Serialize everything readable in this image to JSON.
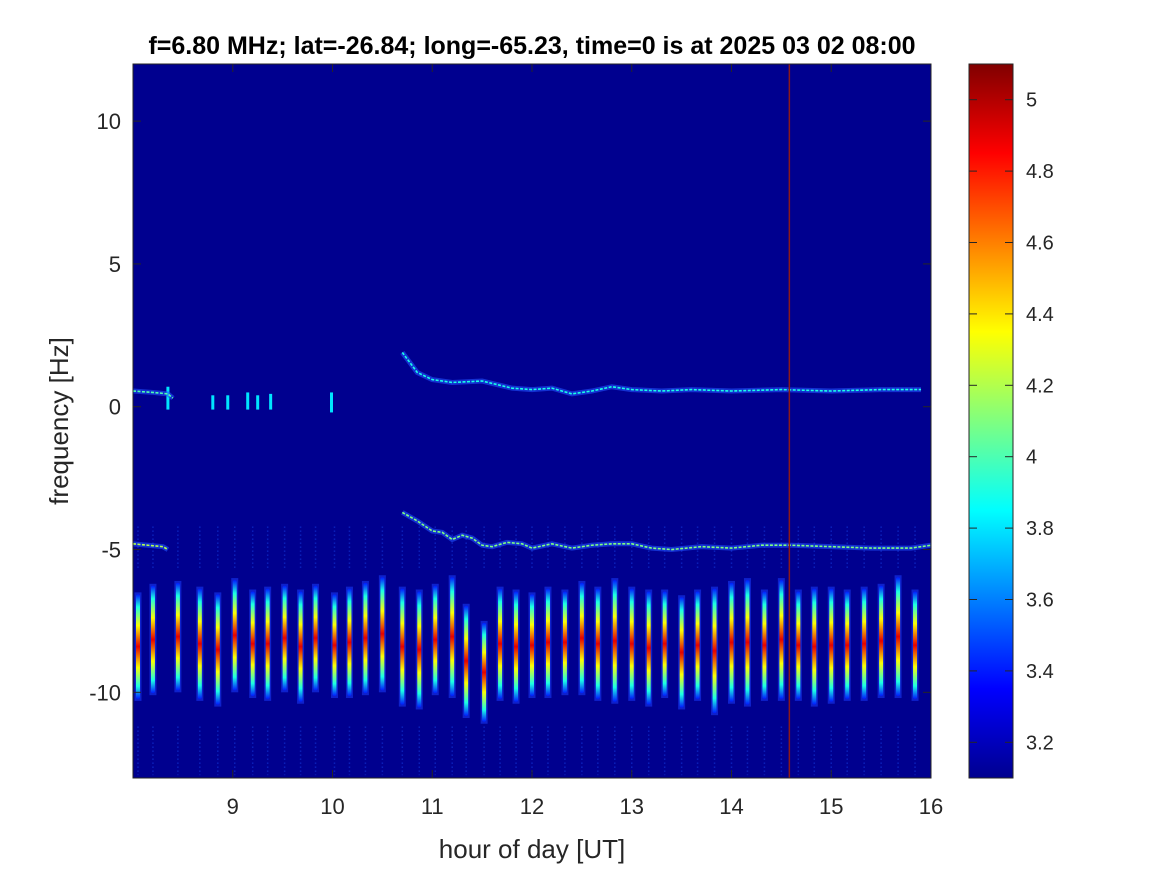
{
  "chart_data": {
    "type": "heatmap",
    "title": "f=6.80 MHz;  lat=-26.84; long=-65.23, time=0 is at 2025 03 02 08:00",
    "xlabel": "hour of day [UT]",
    "ylabel": "frequency [Hz]",
    "xlim": [
      8.0,
      16.0
    ],
    "ylim": [
      -13.0,
      12.0
    ],
    "xticks": [
      9,
      10,
      11,
      12,
      13,
      14,
      15,
      16
    ],
    "xtick_labels": [
      "9",
      "10",
      "11",
      "12",
      "13",
      "14",
      "15",
      "16"
    ],
    "yticks": [
      -10,
      -5,
      0,
      5,
      10
    ],
    "ytick_labels": [
      "-10",
      "-5",
      "0",
      "5",
      "10"
    ],
    "colormap": "jet",
    "clim": [
      3.1,
      5.1
    ],
    "colorbar_ticks": [
      3.2,
      3.4,
      3.6,
      3.8,
      4.0,
      4.2,
      4.4,
      4.6,
      4.8,
      5.0
    ],
    "colorbar_tick_labels": [
      "3.2",
      "3.4",
      "3.6",
      "3.8",
      "4",
      "4.2",
      "4.4",
      "4.6",
      "4.8",
      "5"
    ],
    "background_value": 3.12,
    "vertical_marker": {
      "x": 14.58,
      "color": "#8b1a1a"
    },
    "traces": [
      {
        "name": "upper doppler trace",
        "x": [
          8.0,
          8.2,
          8.35,
          8.4
        ],
        "y": [
          0.55,
          0.5,
          0.45,
          0.3
        ],
        "value": 4.0
      },
      {
        "name": "upper doppler trace 2",
        "x": [
          10.7,
          10.85,
          11.0,
          11.2,
          11.5,
          11.8,
          12.0,
          12.2,
          12.4,
          12.6,
          12.8,
          13.0,
          13.3,
          13.6,
          14.0,
          14.5,
          15.0,
          15.5,
          15.9
        ],
        "y": [
          1.9,
          1.2,
          0.95,
          0.85,
          0.9,
          0.65,
          0.6,
          0.65,
          0.45,
          0.55,
          0.7,
          0.6,
          0.55,
          0.6,
          0.55,
          0.6,
          0.55,
          0.6,
          0.6
        ],
        "value": 3.9
      },
      {
        "name": "lower doppler trace",
        "x": [
          8.0,
          8.15,
          8.3,
          8.35
        ],
        "y": [
          -4.8,
          -4.85,
          -4.9,
          -5.0
        ],
        "value": 4.2
      },
      {
        "name": "lower doppler trace 2",
        "x": [
          10.7,
          10.85,
          11.0,
          11.1,
          11.2,
          11.3,
          11.4,
          11.5,
          11.6,
          11.75,
          11.9,
          12.0,
          12.2,
          12.4,
          12.6,
          12.8,
          13.0,
          13.2,
          13.4,
          13.7,
          14.0,
          14.3,
          14.6,
          15.0,
          15.4,
          15.8,
          16.0
        ],
        "y": [
          -3.7,
          -4.0,
          -4.35,
          -4.4,
          -4.65,
          -4.5,
          -4.6,
          -4.85,
          -4.9,
          -4.75,
          -4.8,
          -4.95,
          -4.8,
          -4.95,
          -4.85,
          -4.8,
          -4.8,
          -4.95,
          -5.0,
          -4.9,
          -4.95,
          -4.85,
          -4.85,
          -4.9,
          -4.95,
          -4.95,
          -4.85
        ],
        "value": 4.1
      }
    ],
    "blips": [
      {
        "x": 8.35,
        "y0": -0.1,
        "y1": 0.7
      },
      {
        "x": 8.8,
        "y0": -0.1,
        "y1": 0.4
      },
      {
        "x": 8.95,
        "y0": -0.1,
        "y1": 0.4
      },
      {
        "x": 9.15,
        "y0": -0.1,
        "y1": 0.5
      },
      {
        "x": 9.25,
        "y0": -0.1,
        "y1": 0.4
      },
      {
        "x": 9.38,
        "y0": -0.1,
        "y1": 0.45
      },
      {
        "x": 9.99,
        "y0": -0.2,
        "y1": 0.5
      }
    ],
    "stripes": {
      "x": [
        8.05,
        8.2,
        8.45,
        8.67,
        8.85,
        9.02,
        9.2,
        9.35,
        9.52,
        9.68,
        9.83,
        10.02,
        10.17,
        10.33,
        10.5,
        10.7,
        10.87,
        11.03,
        11.2,
        11.34,
        11.52,
        11.68,
        11.84,
        12.0,
        12.16,
        12.33,
        12.5,
        12.66,
        12.83,
        13.0,
        13.17,
        13.33,
        13.5,
        13.66,
        13.83,
        14.0,
        14.16,
        14.33,
        14.5,
        14.67,
        14.83,
        15.0,
        15.16,
        15.33,
        15.5,
        15.67,
        15.84
      ],
      "y_top": [
        -6.5,
        -6.2,
        -6.1,
        -6.3,
        -6.5,
        -6.0,
        -6.4,
        -6.3,
        -6.2,
        -6.4,
        -6.2,
        -6.5,
        -6.3,
        -6.1,
        -5.9,
        -6.3,
        -6.4,
        -6.2,
        -5.9,
        -6.9,
        -7.5,
        -6.3,
        -6.4,
        -6.5,
        -6.3,
        -6.4,
        -6.1,
        -6.3,
        -6.0,
        -6.3,
        -6.4,
        -6.4,
        -6.6,
        -6.4,
        -6.3,
        -6.1,
        -6.0,
        -6.4,
        -6.0,
        -6.4,
        -6.3,
        -6.3,
        -6.4,
        -6.3,
        -6.2,
        -5.9,
        -6.4
      ],
      "y_bottom": [
        -10.3,
        -10.1,
        -10.0,
        -10.3,
        -10.5,
        -10.0,
        -10.2,
        -10.3,
        -10.0,
        -10.4,
        -10.0,
        -10.2,
        -10.2,
        -10.1,
        -10.0,
        -10.5,
        -10.6,
        -10.1,
        -10.2,
        -10.9,
        -11.1,
        -10.3,
        -10.4,
        -10.2,
        -10.2,
        -10.1,
        -10.1,
        -10.3,
        -10.4,
        -10.3,
        -10.5,
        -10.2,
        -10.6,
        -10.3,
        -10.8,
        -10.4,
        -10.5,
        -10.3,
        -10.3,
        -10.3,
        -10.5,
        -10.4,
        -10.3,
        -10.3,
        -10.2,
        -10.2,
        -10.3
      ],
      "peak_value": 4.9
    }
  }
}
